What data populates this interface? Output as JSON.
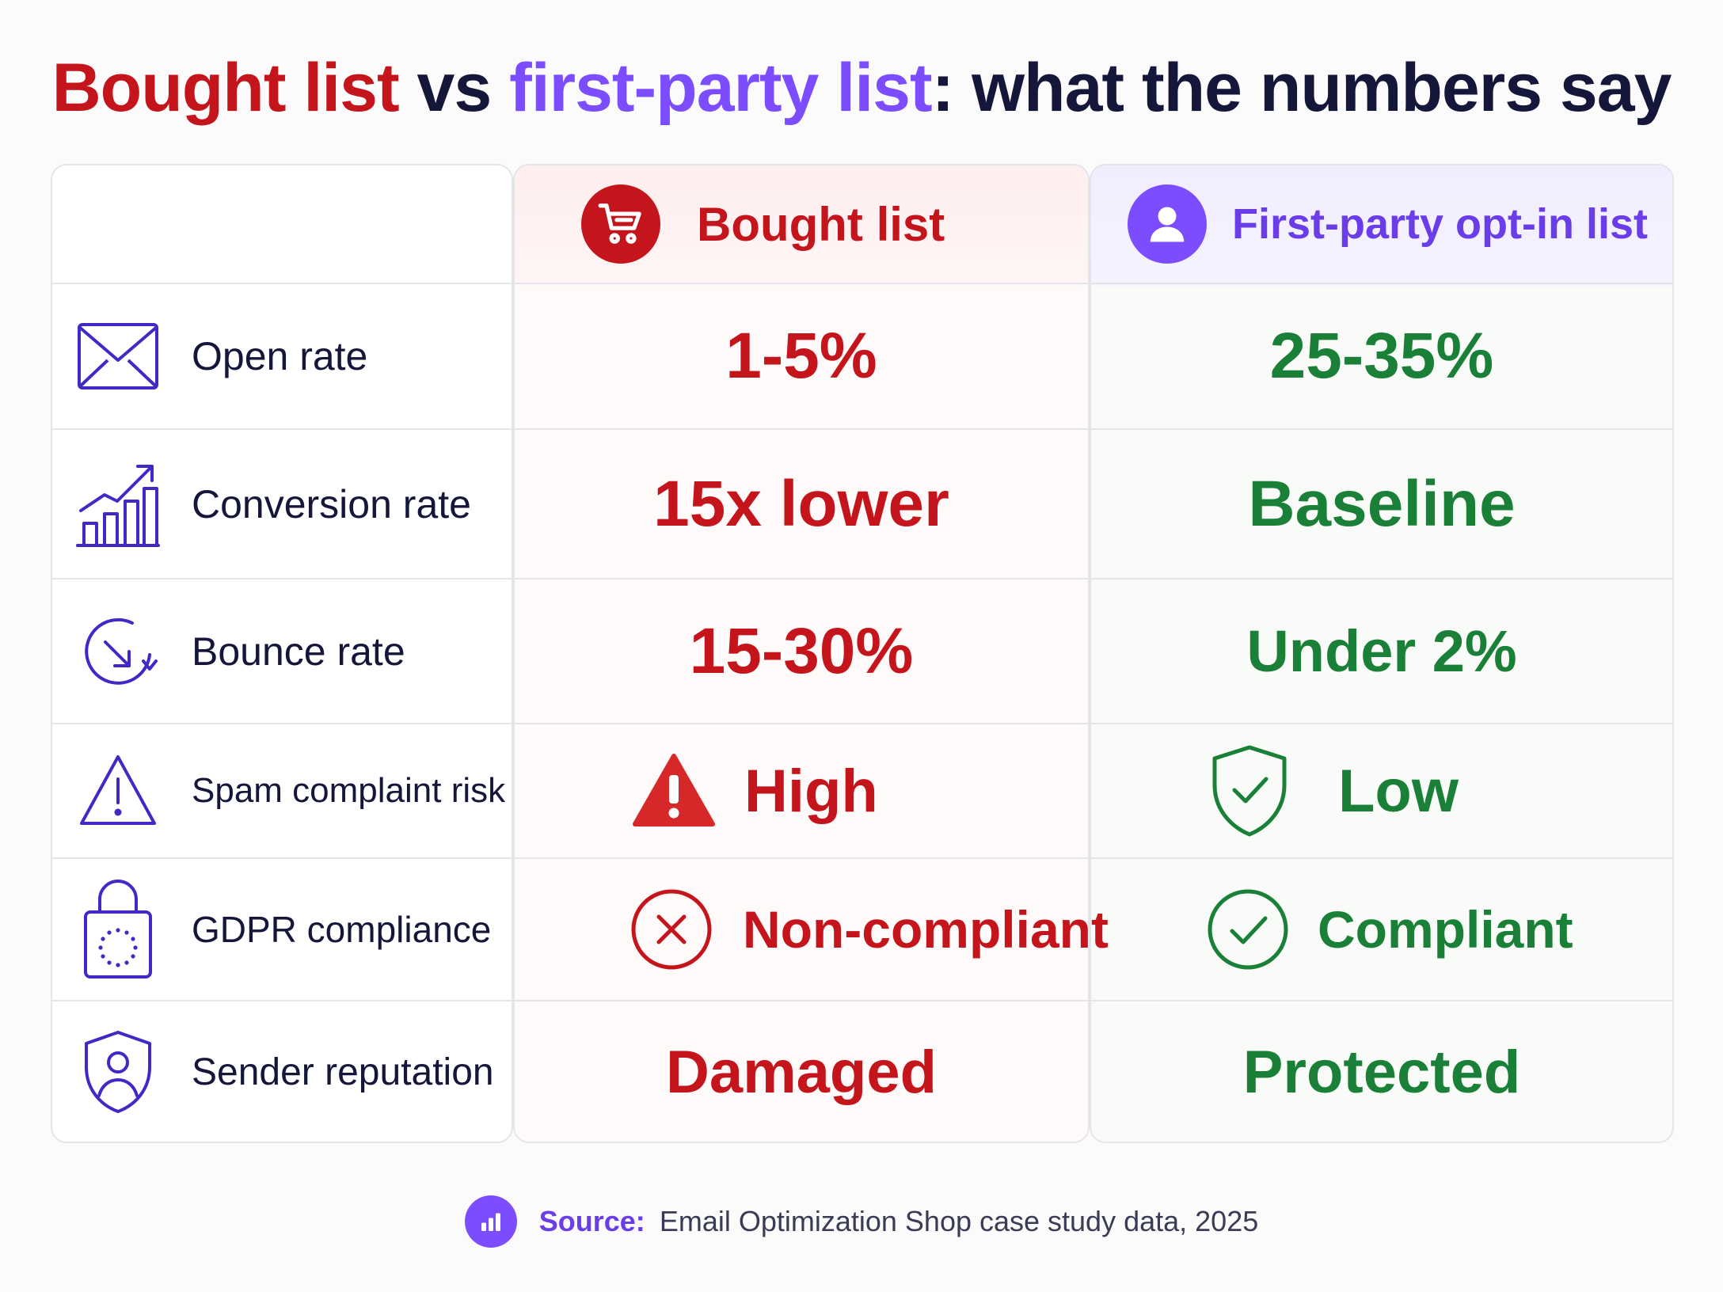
{
  "title": {
    "part1": "Bought list",
    "part2": " vs ",
    "part3": "first-party list",
    "part4": ": what the numbers say"
  },
  "chart_data": {
    "type": "table",
    "columns": [
      "",
      "Bought list",
      "First-party opt-in list"
    ],
    "rows": [
      {
        "metric": "Open rate",
        "icon": "envelope-icon",
        "bought": "1-5%",
        "first_party": "25-35%"
      },
      {
        "metric": "Conversion rate",
        "icon": "growth-chart-icon",
        "bought": "15x lower",
        "first_party": "Baseline"
      },
      {
        "metric": "Bounce rate",
        "icon": "bounce-arrow-icon",
        "bought": "15-30%",
        "first_party": "Under 2%"
      },
      {
        "metric": "Spam complaint risk",
        "icon": "warning-triangle-icon",
        "bought": "High",
        "first_party": "Low"
      },
      {
        "metric": "GDPR compliance",
        "icon": "eu-lock-icon",
        "bought": "Non-compliant",
        "first_party": "Compliant"
      },
      {
        "metric": "Sender reputation",
        "icon": "user-shield-icon",
        "bought": "Damaged",
        "first_party": "Protected"
      }
    ]
  },
  "header": {
    "bought_icon": "shopping-cart-icon",
    "first_icon": "user-icon"
  },
  "source": {
    "label": "Source:",
    "text": "Email Optimization Shop case study data, 2025",
    "icon": "bar-chart-icon"
  },
  "colors": {
    "bought": "#c4151c",
    "first_party": "#1a7f37",
    "accent": "#7c4dff",
    "text": "#14163a"
  }
}
